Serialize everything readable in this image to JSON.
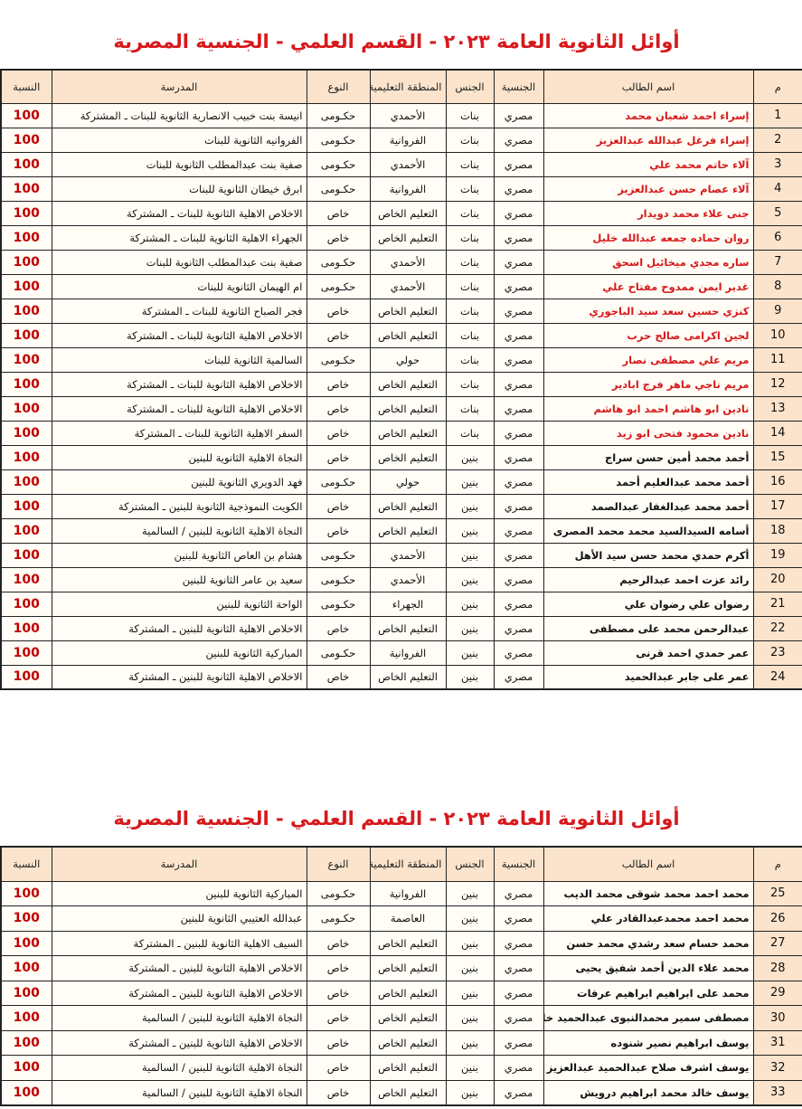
{
  "colors": {
    "title": "#d7191c",
    "header_bg": "#fce4cc",
    "highlight_name": "#d7191c",
    "percent": "#c00000"
  },
  "title": "أوائل الثانوية العامة ٢٠٢٣ - القسم العلمي - الجنسية المصرية",
  "headers": {
    "num": "م",
    "name": "اسم الطالب",
    "nationality": "الجنسية",
    "gender": "الجنس",
    "region": "المنطقة التعليمية",
    "type": "النوع",
    "school": "المدرسة",
    "percent": "النسبة"
  },
  "tables": [
    {
      "rows": [
        {
          "n": "1",
          "name": "إسراء احمد شعبان محمد",
          "nat": "مصري",
          "gender": "بنات",
          "region": "الأحمدي",
          "type": "حكـومى",
          "school": "انيسة بنت خبيب الانصارية الثانوية للبنات ـ المشتركة",
          "pct": "100",
          "highlighted": true
        },
        {
          "n": "2",
          "name": "إسراء فرغل عبدالله عبدالعزيز",
          "nat": "مصري",
          "gender": "بنات",
          "region": "الفروانية",
          "type": "حكـومى",
          "school": "الفروانيه الثانوية للبنات",
          "pct": "100",
          "highlighted": true
        },
        {
          "n": "3",
          "name": "آلاء حاتم محمد  علي",
          "nat": "مصري",
          "gender": "بنات",
          "region": "الأحمدي",
          "type": "حكـومى",
          "school": "صفية بنت عبدالمطلب الثانوية  للبنات",
          "pct": "100",
          "highlighted": true
        },
        {
          "n": "4",
          "name": "آلاء عصام حسن عبدالعزيز",
          "nat": "مصري",
          "gender": "بنات",
          "region": "الفروانية",
          "type": "حكـومى",
          "school": "ابرق خيطان  الثانوية  للبنات",
          "pct": "100",
          "highlighted": true
        },
        {
          "n": "5",
          "name": "جنى علاء محمد دويدار",
          "nat": "مصري",
          "gender": "بنات",
          "region": "التعليم الخاص",
          "type": "خاص",
          "school": "الاخلاص الاهلية الثانوية للبنات ـ المشتركة",
          "pct": "100",
          "highlighted": true
        },
        {
          "n": "6",
          "name": "روان حماده جمعه عبدالله  خليل",
          "nat": "مصري",
          "gender": "بنات",
          "region": "التعليم الخاص",
          "type": "خاص",
          "school": "الجهراء الاهلية الثانوية للبنات ـ المشتركة",
          "pct": "100",
          "highlighted": true
        },
        {
          "n": "7",
          "name": "ساره مجدي ميخائيل  اسحق",
          "nat": "مصري",
          "gender": "بنات",
          "region": "الأحمدي",
          "type": "حكـومى",
          "school": "صفية بنت عبدالمطلب الثانوية  للبنات",
          "pct": "100",
          "highlighted": true
        },
        {
          "n": "8",
          "name": "غدير ايمن ممدوح مفتاح علي",
          "nat": "مصري",
          "gender": "بنات",
          "region": "الأحمدي",
          "type": "حكـومى",
          "school": "ام الهيمان الثانوية  للبنات",
          "pct": "100",
          "highlighted": true
        },
        {
          "n": "9",
          "name": "كنزي حسين سعد سيد الباجوري",
          "nat": "مصري",
          "gender": "بنات",
          "region": "التعليم الخاص",
          "type": "خاص",
          "school": "فجر الصباح الثانوية للبنات ـ المشتركة",
          "pct": "100",
          "highlighted": true
        },
        {
          "n": "10",
          "name": "لجين اكرامى صالح حرب",
          "nat": "مصري",
          "gender": "بنات",
          "region": "التعليم الخاص",
          "type": "خاص",
          "school": "الاخلاص الاهلية الثانوية للبنات ـ المشتركة",
          "pct": "100",
          "highlighted": true
        },
        {
          "n": "11",
          "name": "مريم علي مصطفى نصار",
          "nat": "مصري",
          "gender": "بنات",
          "region": "حولي",
          "type": "حكـومى",
          "school": "السالمية الثانوية للبنات",
          "pct": "100",
          "highlighted": true
        },
        {
          "n": "12",
          "name": "مريم ناجي ماهر فرج ابادير",
          "nat": "مصري",
          "gender": "بنات",
          "region": "التعليم الخاص",
          "type": "خاص",
          "school": "الاخلاص الاهلية الثانوية للبنات ـ المشتركة",
          "pct": "100",
          "highlighted": true
        },
        {
          "n": "13",
          "name": "نادين ابو هاشم احمد ابو هاشم",
          "nat": "مصري",
          "gender": "بنات",
          "region": "التعليم الخاص",
          "type": "خاص",
          "school": "الاخلاص الاهلية الثانوية للبنات ـ المشتركة",
          "pct": "100",
          "highlighted": true
        },
        {
          "n": "14",
          "name": "نادين محمود فتحى ابو زيد",
          "nat": "مصري",
          "gender": "بنات",
          "region": "التعليم الخاص",
          "type": "خاص",
          "school": "السفر الاهلية الثانوية للبنات ـ المشتركة",
          "pct": "100",
          "highlighted": true
        },
        {
          "n": "15",
          "name": "أحمد محمد أمين حسن سراج",
          "nat": "مصري",
          "gender": "بنين",
          "region": "التعليم الخاص",
          "type": "خاص",
          "school": "النجاة الاهلية الثانوية للبنين",
          "pct": "100",
          "highlighted": false
        },
        {
          "n": "16",
          "name": "أحمد محمد عبدالعليم أحمد",
          "nat": "مصري",
          "gender": "بنين",
          "region": "حولي",
          "type": "حكـومى",
          "school": "فهد الدويري الثانوية للبنين",
          "pct": "100",
          "highlighted": false
        },
        {
          "n": "17",
          "name": "أحمد محمد عبدالغفار عبدالصمد",
          "nat": "مصري",
          "gender": "بنين",
          "region": "التعليم الخاص",
          "type": "خاص",
          "school": "الكويت النموذجية الثانوية للبنين ـ المشتركة",
          "pct": "100",
          "highlighted": false
        },
        {
          "n": "18",
          "name": "أسامه السيدالسيد محمد محمد المصرى",
          "nat": "مصري",
          "gender": "بنين",
          "region": "التعليم الخاص",
          "type": "خاص",
          "school": "النجاة الاهلية الثانوية للبنين / السالمية",
          "pct": "100",
          "highlighted": false
        },
        {
          "n": "19",
          "name": "أكرم حمدي محمد حسن سيد الأهل",
          "nat": "مصري",
          "gender": "بنين",
          "region": "الأحمدي",
          "type": "حكـومى",
          "school": "هشام بن العاص الثانوية للبنين",
          "pct": "100",
          "highlighted": false
        },
        {
          "n": "20",
          "name": "رائد عزت احمد عبدالرحيم",
          "nat": "مصري",
          "gender": "بنين",
          "region": "الأحمدي",
          "type": "حكـومى",
          "school": "سعيد بن عامر الثانوية  للبنين",
          "pct": "100",
          "highlighted": false
        },
        {
          "n": "21",
          "name": "رضوان علي رضوان علي",
          "nat": "مصري",
          "gender": "بنين",
          "region": "الجهراء",
          "type": "حكـومى",
          "school": "الواحة  الثانوية  للبنين",
          "pct": "100",
          "highlighted": false
        },
        {
          "n": "22",
          "name": "عبدالرحمن محمد على  مصطفى",
          "nat": "مصري",
          "gender": "بنين",
          "region": "التعليم الخاص",
          "type": "خاص",
          "school": "الاخلاص الاهلية الثانوية للبنين ـ المشتركة",
          "pct": "100",
          "highlighted": false
        },
        {
          "n": "23",
          "name": "عمر حمدي احمد قرنى",
          "nat": "مصري",
          "gender": "بنين",
          "region": "الفروانية",
          "type": "حكـومى",
          "school": "المباركية الثانوية للبنين",
          "pct": "100",
          "highlighted": false
        },
        {
          "n": "24",
          "name": "عمر على جابر عبدالحميد",
          "nat": "مصري",
          "gender": "بنين",
          "region": "التعليم الخاص",
          "type": "خاص",
          "school": "الاخلاص الاهلية الثانوية للبنين ـ المشتركة",
          "pct": "100",
          "highlighted": false
        }
      ]
    },
    {
      "rows": [
        {
          "n": "25",
          "name": "محمد احمد محمد شوقى محمد الديب",
          "nat": "مصري",
          "gender": "بنين",
          "region": "الفروانية",
          "type": "حكـومى",
          "school": "المباركية الثانوية للبنين",
          "pct": "100",
          "highlighted": false
        },
        {
          "n": "26",
          "name": "محمد احمد محمدعبدالقادر  علي",
          "nat": "مصري",
          "gender": "بنين",
          "region": "العاصمة",
          "type": "حكـومى",
          "school": "عبدالله العتيبي الثانوية  للبنين",
          "pct": "100",
          "highlighted": false
        },
        {
          "n": "27",
          "name": "محمد حسام سعد رشدي محمد حسن",
          "nat": "مصري",
          "gender": "بنين",
          "region": "التعليم الخاص",
          "type": "خاص",
          "school": "السيف الاهلية الثانوية للبنين ـ المشتركة",
          "pct": "100",
          "highlighted": false
        },
        {
          "n": "28",
          "name": "محمد علاء الدين أحمد شفيق  يحيى",
          "nat": "مصري",
          "gender": "بنين",
          "region": "التعليم الخاص",
          "type": "خاص",
          "school": "الاخلاص الاهلية الثانوية للبنين ـ المشتركة",
          "pct": "100",
          "highlighted": false
        },
        {
          "n": "29",
          "name": "محمد على ابراهيم  ابراهيم عرفات",
          "nat": "مصري",
          "gender": "بنين",
          "region": "التعليم الخاص",
          "type": "خاص",
          "school": "الاخلاص الاهلية الثانوية للبنين ـ المشتركة",
          "pct": "100",
          "highlighted": false
        },
        {
          "n": "30",
          "name": "مصطفى سمير محمدالنبوى عبدالحميد خليل",
          "nat": "مصري",
          "gender": "بنين",
          "region": "التعليم الخاص",
          "type": "خاص",
          "school": "النجاة الاهلية الثانوية للبنين / السالمية",
          "pct": "100",
          "highlighted": false
        },
        {
          "n": "31",
          "name": "يوسف ابراهيم نصير  شنوده",
          "nat": "مصري",
          "gender": "بنين",
          "region": "التعليم الخاص",
          "type": "خاص",
          "school": "الاخلاص الاهلية الثانوية للبنين ـ المشتركة",
          "pct": "100",
          "highlighted": false
        },
        {
          "n": "32",
          "name": "يوسف اشرف صلاح عبدالحميد عبدالعزيز",
          "nat": "مصري",
          "gender": "بنين",
          "region": "التعليم الخاص",
          "type": "خاص",
          "school": "النجاة الاهلية الثانوية للبنين / السالمية",
          "pct": "100",
          "highlighted": false
        },
        {
          "n": "33",
          "name": "يوسف خالد محمد ابراهيم درويش",
          "nat": "مصري",
          "gender": "بنين",
          "region": "التعليم الخاص",
          "type": "خاص",
          "school": "النجاة الاهلية الثانوية للبنين / السالمية",
          "pct": "100",
          "highlighted": false
        }
      ]
    }
  ]
}
